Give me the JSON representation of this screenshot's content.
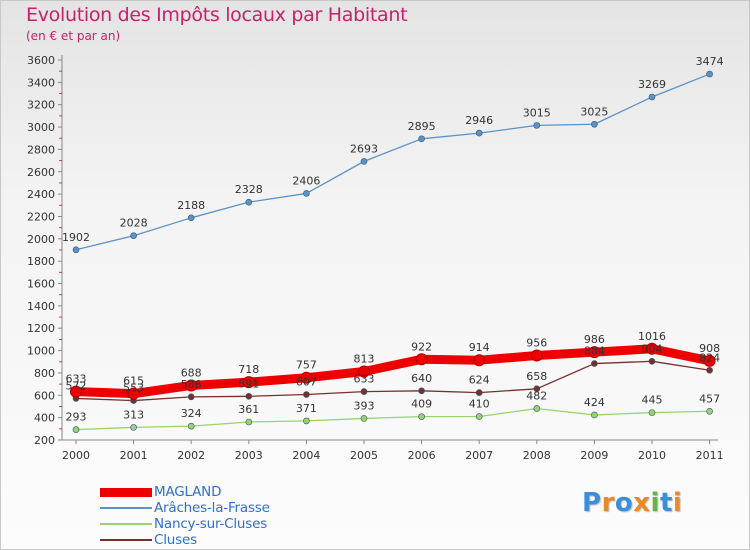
{
  "title": "Evolution des Impôts locaux par Habitant",
  "subtitle": "(en € et par an)",
  "logo": {
    "text": "Proxiti",
    "letters": [
      "P",
      "r",
      "o",
      "x",
      "i",
      "t",
      "i"
    ],
    "colors": [
      "#3a8fd8",
      "#e8892a",
      "#3a8fd8",
      "#e8892a",
      "#6ab04c",
      "#3a8fd8",
      "#e8892a"
    ]
  },
  "chart_data": {
    "type": "line",
    "title": "Evolution des Impôts locaux par Habitant",
    "subtitle": "(en € et par an)",
    "xlabel": "",
    "ylabel": "",
    "x": [
      "2000",
      "2001",
      "2002",
      "2003",
      "2004",
      "2005",
      "2006",
      "2007",
      "2008",
      "2009",
      "2010",
      "2011"
    ],
    "ylim": [
      200,
      3600
    ],
    "yticks": [
      200,
      400,
      600,
      800,
      1000,
      1200,
      1400,
      1600,
      1800,
      2000,
      2200,
      2400,
      2600,
      2800,
      3000,
      3200,
      3400,
      3600
    ],
    "grid": false,
    "legend_position": "bottom-left",
    "series": [
      {
        "name": "MAGLAND",
        "color": "#ee0000",
        "values": [
          633,
          615,
          688,
          718,
          757,
          813,
          922,
          914,
          956,
          986,
          1016,
          908
        ],
        "labels": [
          "633",
          "615",
          "688",
          "718",
          "757",
          "813",
          "922",
          "914",
          "956",
          "986",
          "1016",
          "908"
        ]
      },
      {
        "name": "Arâches-la-Frasse",
        "color": "#5b92c8",
        "values": [
          1902,
          2028,
          2188,
          2328,
          2406,
          2693,
          2895,
          2946,
          3015,
          3025,
          3269,
          3474
        ],
        "labels": [
          "1902",
          "2028",
          "2188",
          "2328",
          "2406",
          "2693",
          "2895",
          "2946",
          "3015",
          "3025",
          "3269",
          "3474"
        ]
      },
      {
        "name": "Nancy-sur-Cluses",
        "color": "#99d36a",
        "values": [
          293,
          313,
          324,
          361,
          371,
          393,
          409,
          410,
          482,
          424,
          445,
          457
        ],
        "labels": [
          "293",
          "313",
          "324",
          "361",
          "371",
          "393",
          "409",
          "410",
          "482",
          "424",
          "445",
          "457"
        ]
      },
      {
        "name": "Cluses",
        "color": "#7a2f2f",
        "values": [
          572,
          553,
          586,
          591,
          607,
          633,
          640,
          624,
          658,
          884,
          904,
          824
        ],
        "labels": [
          "572",
          "553",
          "586",
          "591",
          "607",
          "633",
          "640",
          "624",
          "658",
          "884",
          "904",
          "824"
        ]
      }
    ]
  }
}
